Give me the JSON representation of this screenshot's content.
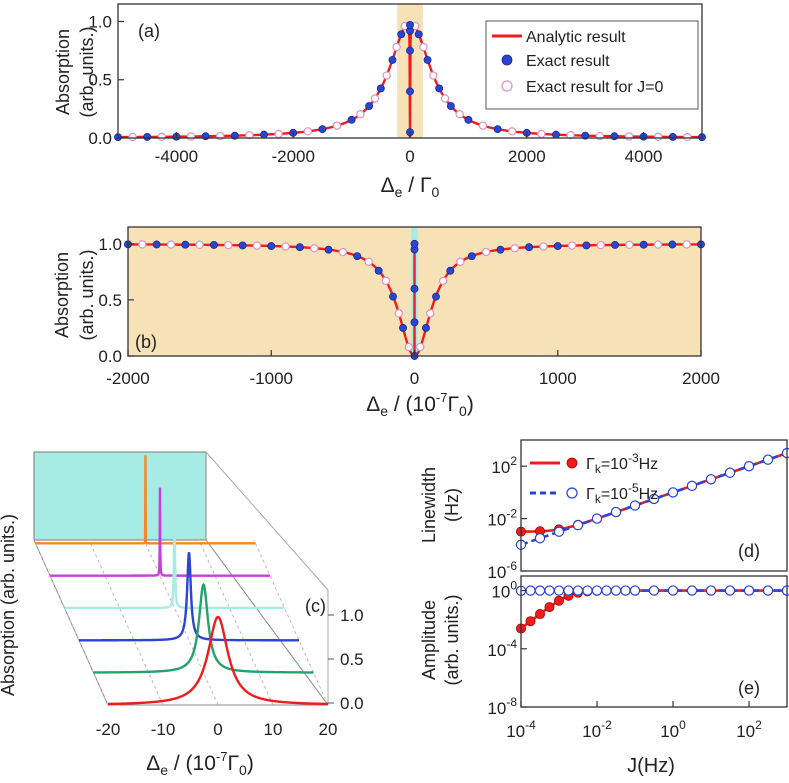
{
  "colors": {
    "red": "#ee1c1c",
    "blue": "#2a44d6",
    "pink": "#e090c8",
    "tan": "#f7e2b8",
    "cyan": "#a6ece4",
    "orange": "#f08a2c",
    "magenta": "#c53fdb",
    "green": "#23a36b",
    "grid": "#b8b8b8"
  },
  "chart_data": [
    {
      "id": "a",
      "type": "line",
      "panel_label": "(a)",
      "xlabel_main": "Δ",
      "xlabel_sub": "e",
      "xlabel_rest": " / Γ",
      "xlabel_sub2": "0",
      "ylabel_line1": "Absorption",
      "ylabel_line2": "(arb. units.)",
      "xlim": [
        -5000,
        5000
      ],
      "ylim": [
        0,
        1.15
      ],
      "xticks": [
        -4000,
        -2000,
        0,
        2000,
        4000
      ],
      "xticklabels": [
        "-4000",
        "-2000",
        "0",
        "2000",
        "4000"
      ],
      "yticks": [
        0,
        0.5,
        1.0
      ],
      "yticklabels": [
        "0.0",
        "0.5",
        "1.0"
      ],
      "highlight_band": [
        -220,
        220
      ],
      "lorentz_halfwidth": 430,
      "legend": [
        "Analytic result",
        "Exact result",
        "Exact result for J=0"
      ],
      "series": [
        {
          "name": "Analytic result",
          "style": "line",
          "dip_halfwidth": 4
        },
        {
          "name": "Exact result",
          "style": "filled",
          "x": [
            -5000,
            -4500,
            -4000,
            -3500,
            -3000,
            -2500,
            -2000,
            -1500,
            -1000,
            -700,
            -500,
            -300,
            -150,
            0,
            0,
            0,
            0,
            0,
            150,
            300,
            500,
            700,
            1000,
            1500,
            2000,
            2500,
            3000,
            3500,
            4000,
            4500,
            5000
          ],
          "y": [
            0.007,
            0.009,
            0.011,
            0.015,
            0.02,
            0.029,
            0.044,
            0.076,
            0.156,
            0.274,
            0.425,
            0.67,
            0.89,
            0.05,
            0.4,
            0.75,
            0.92,
            0.97,
            0.89,
            0.67,
            0.425,
            0.274,
            0.156,
            0.076,
            0.044,
            0.029,
            0.02,
            0.015,
            0.011,
            0.009,
            0.007
          ]
        },
        {
          "name": "Exact result for J=0",
          "style": "open",
          "x": [
            -4750,
            -4250,
            -3750,
            -3250,
            -2750,
            -2250,
            -1750,
            -1250,
            -850,
            -600,
            -400,
            -230,
            -90,
            90,
            230,
            400,
            600,
            850,
            1250,
            1750,
            2250,
            2750,
            3250,
            3750,
            4250,
            4750
          ],
          "y": [
            0.008,
            0.01,
            0.013,
            0.017,
            0.024,
            0.035,
            0.057,
            0.106,
            0.204,
            0.339,
            0.536,
            0.78,
            0.96,
            0.96,
            0.78,
            0.536,
            0.339,
            0.204,
            0.106,
            0.057,
            0.035,
            0.024,
            0.017,
            0.013,
            0.01,
            0.008
          ]
        }
      ]
    },
    {
      "id": "b",
      "type": "line",
      "panel_label": "(b)",
      "xlabel_main": "Δ",
      "xlabel_sub": "e",
      "xlabel_rest": " / (10",
      "xlabel_sup": "-7",
      "xlabel_rest2": "Γ",
      "xlabel_sub2": "0",
      "xlabel_end": ")",
      "ylabel_line1": "Absorption",
      "ylabel_line2": "(arb. units.)",
      "xlim": [
        -2000,
        2000
      ],
      "ylim": [
        0,
        1.15
      ],
      "xticks": [
        -2000,
        -1000,
        0,
        1000,
        2000
      ],
      "xticklabels": [
        "-2000",
        "-1000",
        "0",
        "1000",
        "2000"
      ],
      "yticks": [
        0,
        0.5,
        1.0
      ],
      "yticklabels": [
        "0.0",
        "0.5",
        "1.0"
      ],
      "highlight_band": [
        -22,
        22
      ],
      "dip_halfwidth": 140,
      "series": [
        {
          "name": "Analytic result",
          "style": "line"
        },
        {
          "name": "Exact result",
          "style": "filled",
          "x": [
            -2000,
            -1800,
            -1600,
            -1400,
            -1200,
            -1000,
            -800,
            -600,
            -400,
            -250,
            -150,
            -80,
            0,
            0,
            0,
            0,
            0,
            80,
            150,
            250,
            400,
            600,
            800,
            1000,
            1200,
            1400,
            1600,
            1800,
            2000
          ],
          "y": [
            0.995,
            0.994,
            0.992,
            0.99,
            0.986,
            0.98,
            0.97,
            0.948,
            0.89,
            0.76,
            0.53,
            0.25,
            0.0,
            0.3,
            0.6,
            0.95,
            1.0,
            0.25,
            0.53,
            0.76,
            0.89,
            0.948,
            0.97,
            0.98,
            0.986,
            0.99,
            0.992,
            0.994,
            0.995
          ]
        },
        {
          "name": "Exact result for J=0",
          "style": "open",
          "x": [
            -1900,
            -1700,
            -1500,
            -1300,
            -1100,
            -900,
            -700,
            -500,
            -320,
            -200,
            -110,
            -40,
            40,
            110,
            200,
            320,
            500,
            700,
            900,
            1100,
            1300,
            1500,
            1700,
            1900
          ],
          "y": [
            0.995,
            0.993,
            0.991,
            0.988,
            0.984,
            0.976,
            0.96,
            0.927,
            0.84,
            0.67,
            0.38,
            0.08,
            0.08,
            0.38,
            0.67,
            0.84,
            0.927,
            0.96,
            0.976,
            0.984,
            0.988,
            0.991,
            0.993,
            0.995
          ]
        }
      ]
    },
    {
      "id": "c",
      "type": "line",
      "panel_label": "(c)",
      "xlabel_main": "Δ",
      "xlabel_sub": "e",
      "xlabel_rest": " / (10",
      "xlabel_sup": "-7",
      "xlabel_rest2": "Γ",
      "xlabel_sub2": "0",
      "xlabel_end": ")",
      "ylabel": "Absorption (arb. units.)",
      "xlim": [
        -20,
        20
      ],
      "xticks": [
        -20,
        -10,
        0,
        10,
        20
      ],
      "xticklabels": [
        "-20",
        "-10",
        "0",
        "10",
        "20"
      ],
      "zticks": [
        0,
        0.5,
        1.0
      ],
      "zticklabels": [
        "0.0",
        "0.5",
        "1.0"
      ],
      "series": [
        {
          "name": "curve-1",
          "color": "red",
          "center": 0,
          "halfwidth": 2.2
        },
        {
          "name": "curve-2",
          "color": "green",
          "center": 0,
          "halfwidth": 1.0
        },
        {
          "name": "curve-3",
          "color": "blue",
          "center": 0,
          "halfwidth": 0.4
        },
        {
          "name": "curve-4",
          "color": "cyan",
          "center": 0,
          "halfwidth": 0.12
        },
        {
          "name": "curve-5",
          "color": "magenta",
          "center": 0,
          "halfwidth": 0.04
        },
        {
          "name": "curve-6",
          "color": "orange",
          "center": 0,
          "halfwidth": 0.01
        }
      ]
    },
    {
      "id": "d",
      "type": "line",
      "panel_label": "(d)",
      "scale": "log-log",
      "ylabel_line1": "Linewidth",
      "ylabel_line2": "(Hz)",
      "xlim_exp": [
        -4,
        3
      ],
      "ylim_exp": [
        -6,
        4
      ],
      "yticks_exp": [
        -6,
        -2,
        2
      ],
      "legend": [
        {
          "pre": "Γ",
          "sub": "k",
          "eq": "=10",
          "sup": "-3",
          "unit": "Hz"
        },
        {
          "pre": "Γ",
          "sub": "k",
          "eq": "=10",
          "sup": "-5",
          "unit": "Hz"
        }
      ],
      "series": [
        {
          "name": "Γk=1e-3 Hz",
          "gamma_k": 0.001,
          "color": "red",
          "dash": "solid",
          "marker": "filled",
          "markers_log10J": [
            -4,
            -3.5,
            -3,
            -2.5,
            -2,
            -1.5,
            -1,
            -0.5,
            0,
            0.5,
            1,
            1.5,
            2,
            2.5,
            3
          ]
        },
        {
          "name": "Γk=1e-5 Hz",
          "gamma_k": 1e-05,
          "color": "blue",
          "dash": "dashed",
          "marker": "open",
          "markers_log10J": [
            -4,
            -3.5,
            -3,
            -2.5,
            -2,
            -1.5,
            -1,
            -0.5,
            0,
            0.5,
            1,
            1.5,
            2,
            2.5,
            3
          ]
        }
      ]
    },
    {
      "id": "e",
      "type": "line",
      "panel_label": "(e)",
      "scale": "log-log",
      "xlabel": "J(Hz)",
      "ylabel_line1": "Amplitude",
      "ylabel_line2": "(arb. units.)",
      "xlim_exp": [
        -4,
        3
      ],
      "ylim_exp": [
        -8,
        1
      ],
      "xticks_exp": [
        -4,
        -2,
        0,
        2
      ],
      "yticks_exp": [
        -8,
        -4,
        0
      ],
      "series": [
        {
          "name": "Γk=1e-3 Hz",
          "gamma_k": 0.001,
          "color": "red",
          "dash": "solid",
          "marker": "filled",
          "markers_log10J": [
            -4,
            -3.75,
            -3.5,
            -3.25,
            -3,
            -2.75,
            -2.5,
            -2.25,
            -2,
            -1.75,
            -1.5,
            -1.25,
            -1,
            -0.5,
            0,
            0.5,
            1,
            1.5,
            2,
            2.5,
            3
          ]
        },
        {
          "name": "Γk=1e-5 Hz",
          "gamma_k": 1e-05,
          "color": "blue",
          "dash": "dashed",
          "marker": "open",
          "markers_log10J": [
            -4,
            -3.75,
            -3.5,
            -3.25,
            -3,
            -2.75,
            -2.5,
            -2.25,
            -2,
            -1.75,
            -1.5,
            -1.25,
            -1,
            -0.5,
            0,
            0.5,
            1,
            1.5,
            2,
            2.5,
            3
          ]
        }
      ]
    }
  ]
}
